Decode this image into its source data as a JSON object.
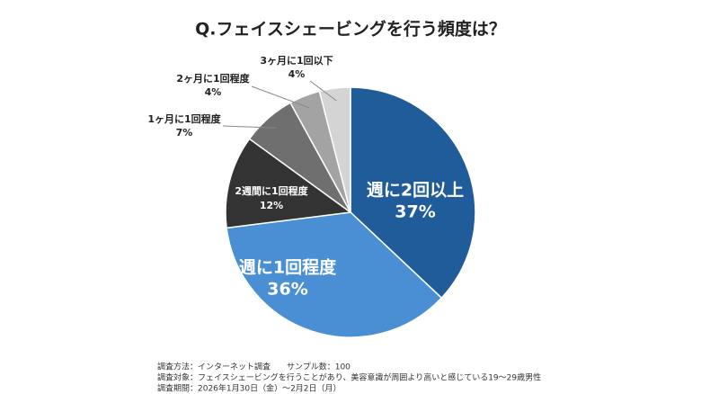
{
  "chart_data": {
    "type": "pie",
    "title": "Q.フェイスシェービングを行う頻度は？",
    "categories": [
      "週に2回以上",
      "週に1回程度",
      "2週間に1回程度",
      "1ヶ月に1回程度",
      "2ヶ月に1回程度",
      "3ヶ月に1回以下"
    ],
    "values": [
      37,
      36,
      12,
      7,
      4,
      4
    ],
    "value_labels": [
      "37%",
      "36%",
      "12%",
      "7%",
      "4%",
      "4%"
    ],
    "colors": [
      "#1f5c99",
      "#4a8fd3",
      "#333333",
      "#6f6f6f",
      "#a3a3a3",
      "#d4d4d4"
    ],
    "notes": [
      "調査方法：インターネット調査　　サンプル数：100",
      "調査対象：フェイスシェービングを行うことがあり、美容意識が周囲より高いと感じている19～29歳男性",
      "調査期間：2026年1月30日（金）～2月2日（月）"
    ]
  }
}
